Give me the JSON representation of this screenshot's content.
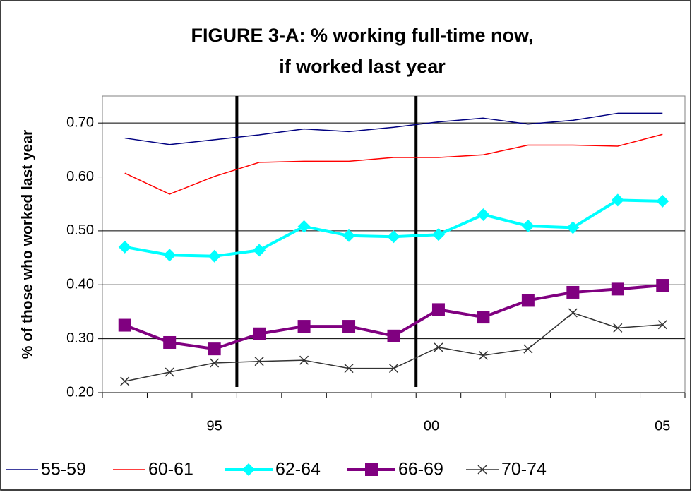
{
  "chart_data": {
    "type": "line",
    "title": "FIGURE 3-A:  % working full-time now,",
    "subtitle": "if worked last year",
    "y_label": "% of those who worked last year",
    "categories": [
      null,
      null,
      "95",
      null,
      null,
      null,
      null,
      "00",
      null,
      null,
      null,
      null,
      "05"
    ],
    "ylim": [
      0.2,
      0.75
    ],
    "yticks": [
      {
        "value": 0.2,
        "label": "0.20"
      },
      {
        "value": 0.3,
        "label": "0.30"
      },
      {
        "value": 0.4,
        "label": "0.40"
      },
      {
        "value": 0.5,
        "label": "0.50"
      },
      {
        "value": 0.6,
        "label": "0.60"
      },
      {
        "value": 0.7,
        "label": "0.70"
      }
    ],
    "grid": true,
    "legend": "bottom",
    "series": [
      {
        "name": "55-59",
        "color": "#000080",
        "width": 1.5,
        "marker": "none",
        "values": [
          0.672,
          0.66,
          0.669,
          0.678,
          0.689,
          0.684,
          0.692,
          0.702,
          0.709,
          0.698,
          0.705,
          0.718,
          0.718
        ]
      },
      {
        "name": "60-61",
        "color": "#ff0000",
        "width": 1.5,
        "marker": "none",
        "values": [
          0.607,
          0.568,
          0.601,
          0.627,
          0.629,
          0.629,
          0.636,
          0.636,
          0.641,
          0.659,
          0.659,
          0.657,
          0.679
        ]
      },
      {
        "name": "62-64",
        "color": "#00ffff",
        "width": 4,
        "marker": "diamond",
        "values": [
          0.47,
          0.455,
          0.453,
          0.464,
          0.508,
          0.491,
          0.489,
          0.493,
          0.53,
          0.509,
          0.506,
          0.557,
          0.555
        ]
      },
      {
        "name": "66-69",
        "color": "#800080",
        "width": 4,
        "marker": "square",
        "values": [
          0.325,
          0.293,
          0.281,
          0.309,
          0.323,
          0.323,
          0.305,
          0.354,
          0.34,
          0.371,
          0.386,
          0.392,
          0.399
        ]
      },
      {
        "name": "70-74",
        "color": "#333333",
        "width": 1.5,
        "marker": "x",
        "values": [
          0.221,
          0.238,
          0.255,
          0.258,
          0.26,
          0.245,
          0.245,
          0.284,
          0.269,
          0.281,
          0.348,
          0.32,
          0.326
        ]
      }
    ]
  }
}
